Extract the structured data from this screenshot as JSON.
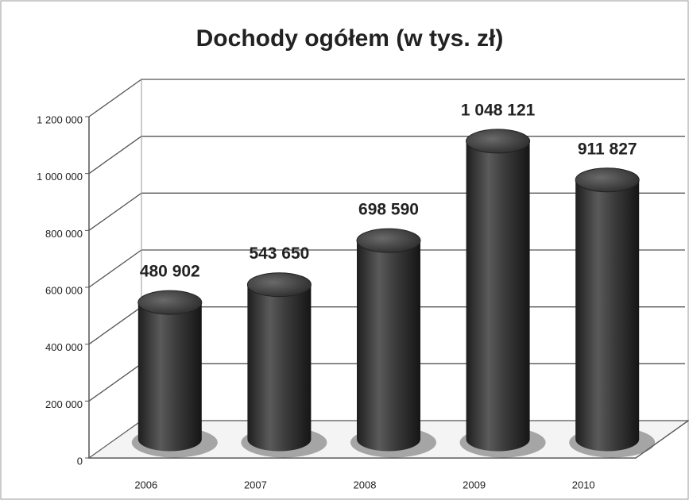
{
  "chart_data": {
    "type": "bar3d",
    "title": "Dochody ogółem (w tys. zł)",
    "categories": [
      "2006",
      "2007",
      "2008",
      "2009",
      "2010"
    ],
    "values": [
      480902,
      543650,
      698590,
      1048121,
      911827
    ],
    "value_labels": [
      "480 902",
      "543 650",
      "698 590",
      "1 048 121",
      "911 827"
    ],
    "color": "#3a3a3a",
    "ylim": [
      0,
      1200000
    ],
    "yticks": [
      0,
      {
        "value": 200000,
        "label": "200 000"
      },
      {
        "value": 400000,
        "label": "400 000"
      },
      {
        "value": 600000,
        "label": "600 000"
      },
      {
        "value": 800000,
        "label": "800 000"
      },
      {
        "value": 1000000,
        "label": "1 000 000"
      },
      {
        "value": 1200000,
        "label": "1 200 000"
      }
    ],
    "grid": true
  }
}
